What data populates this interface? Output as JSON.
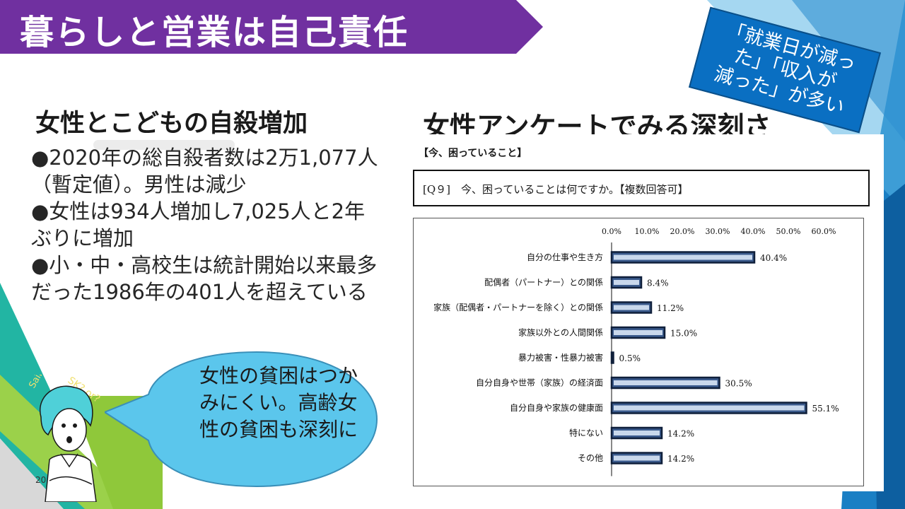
{
  "slide": {
    "title": "暮らしと営業は自己責任",
    "page_number": "20"
  },
  "callout": {
    "line1": "「就業日が減っ",
    "line2": "た」「収入が",
    "line3": "減った」が多い"
  },
  "left": {
    "heading": "女性とこどもの自殺増加",
    "bullets": [
      "●2020年の総自殺者数は2万1,077人（暫定値）。男性は減少",
      "●女性は934人増加し7,025人と2年ぶりに増加",
      "●小・中・高校生は統計開始以来最多だった1986年の401人を超えている"
    ]
  },
  "right": {
    "heading": "女性アンケートでみる深刻さ",
    "caption": "【今、困っていること】",
    "question": "[Q９]　今、困っていることは何ですか。【複数回答可】"
  },
  "bubble": {
    "text": "女性の貧困はつかみにくい。高齢女性の貧困も深刻に"
  },
  "doodle": {
    "text1": "Saibou?",
    "text2": "SK? or?"
  },
  "colors": {
    "banner": "#7030a0",
    "callout": "#0a6fc2",
    "bar_fill": "#3a5a8c",
    "bubble": "#5bc6ec",
    "bg_blue": "#1a7fc4",
    "bg_teal": "#22b5a3",
    "bg_green": "#8fc83a"
  },
  "chart_data": {
    "type": "bar",
    "orientation": "horizontal",
    "categories": [
      "自分の仕事や生き方",
      "配偶者（パートナー）との関係",
      "家族（配偶者・パートナーを除く）との関係",
      "家族以外との人間関係",
      "暴力被害・性暴力被害",
      "自分自身や世帯（家族）の経済面",
      "自分自身や家族の健康面",
      "特にない",
      "その他"
    ],
    "values": [
      40.4,
      8.4,
      11.2,
      15.0,
      0.5,
      30.5,
      55.1,
      14.2,
      14.2
    ],
    "value_labels": [
      "40.4%",
      "8.4%",
      "11.2%",
      "15.0%",
      "0.5%",
      "30.5%",
      "55.1%",
      "14.2%",
      "14.2%"
    ],
    "ticks": [
      0,
      10,
      20,
      30,
      40,
      50,
      60
    ],
    "tick_labels": [
      "0.0%",
      "10.0%",
      "20.0%",
      "30.0%",
      "40.0%",
      "50.0%",
      "60.0%"
    ],
    "xlim": [
      0,
      60
    ],
    "title": "",
    "xlabel": "",
    "ylabel": "",
    "grid": false
  }
}
